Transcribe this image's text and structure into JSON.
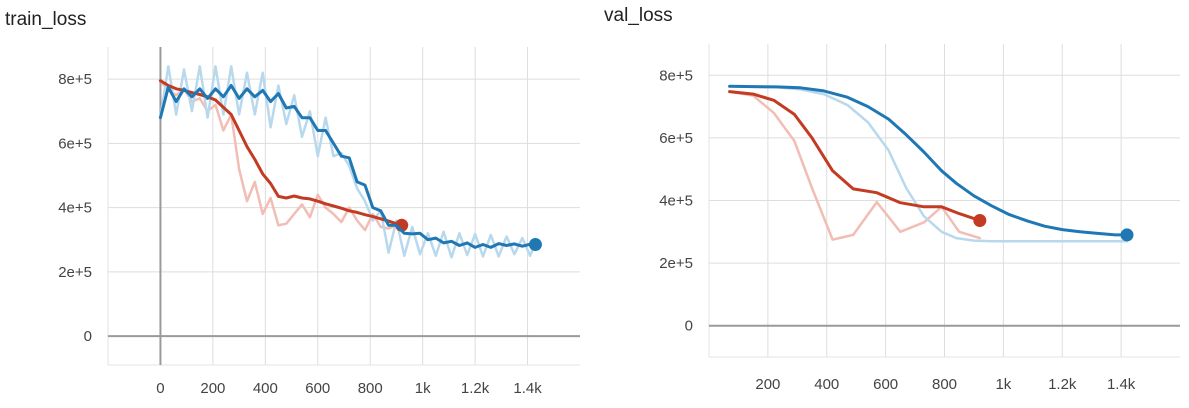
{
  "chart_data": [
    {
      "type": "line",
      "title": "train_loss",
      "xlim": [
        -200,
        1600
      ],
      "ylim": [
        -90000,
        900000
      ],
      "x_ticks": [
        0,
        200,
        400,
        600,
        800,
        1000,
        1200,
        1400
      ],
      "x_tick_labels": [
        "0",
        "200",
        "400",
        "600",
        "800",
        "1k",
        "1.2k",
        "1.4k"
      ],
      "y_ticks": [
        0,
        200000,
        400000,
        600000,
        800000
      ],
      "y_tick_labels": [
        "0",
        "2e+5",
        "4e+5",
        "6e+5",
        "8e+5"
      ],
      "grid": true,
      "series": [
        {
          "color": "#c23b22",
          "raw_color": "#f2bdb4",
          "x": [
            0,
            30,
            60,
            90,
            120,
            150,
            180,
            210,
            240,
            270,
            300,
            330,
            360,
            390,
            420,
            450,
            480,
            510,
            540,
            570,
            600,
            630,
            660,
            690,
            720,
            750,
            780,
            810,
            840,
            870,
            900,
            920
          ],
          "smoothed": [
            795000,
            780000,
            770000,
            765000,
            758000,
            752000,
            745000,
            735000,
            712000,
            690000,
            640000,
            590000,
            550000,
            505000,
            475000,
            435000,
            430000,
            436000,
            430000,
            427000,
            420000,
            412000,
            405000,
            398000,
            390000,
            385000,
            378000,
            372000,
            365000,
            358000,
            350000,
            345000
          ],
          "raw": [
            795000,
            765000,
            750000,
            770000,
            730000,
            740000,
            700000,
            720000,
            640000,
            690000,
            520000,
            420000,
            480000,
            380000,
            430000,
            345000,
            350000,
            380000,
            410000,
            370000,
            440000,
            400000,
            380000,
            355000,
            400000,
            360000,
            330000,
            380000,
            340000,
            335000,
            345000,
            345000
          ]
        },
        {
          "color": "#1f78b4",
          "raw_color": "#b8d9ed",
          "x": [
            0,
            30,
            60,
            90,
            120,
            150,
            180,
            210,
            240,
            270,
            300,
            330,
            360,
            390,
            420,
            450,
            480,
            510,
            540,
            570,
            600,
            630,
            660,
            690,
            720,
            750,
            780,
            810,
            840,
            870,
            900,
            930,
            960,
            990,
            1020,
            1050,
            1080,
            1110,
            1140,
            1170,
            1200,
            1230,
            1260,
            1290,
            1320,
            1350,
            1380,
            1410,
            1430
          ],
          "smoothed": [
            680000,
            775000,
            730000,
            770000,
            745000,
            770000,
            740000,
            770000,
            745000,
            780000,
            740000,
            770000,
            745000,
            765000,
            730000,
            755000,
            710000,
            715000,
            680000,
            680000,
            640000,
            640000,
            600000,
            560000,
            555000,
            480000,
            470000,
            400000,
            390000,
            345000,
            345000,
            320000,
            318000,
            320000,
            300000,
            305000,
            290000,
            295000,
            282000,
            290000,
            276000,
            285000,
            276000,
            288000,
            282000,
            287000,
            280000,
            286000,
            285000
          ],
          "raw": [
            680000,
            840000,
            690000,
            830000,
            700000,
            840000,
            680000,
            840000,
            690000,
            840000,
            690000,
            820000,
            690000,
            820000,
            650000,
            780000,
            660000,
            750000,
            620000,
            700000,
            560000,
            680000,
            560000,
            570000,
            530000,
            460000,
            420000,
            360000,
            390000,
            260000,
            360000,
            250000,
            340000,
            255000,
            320000,
            250000,
            325000,
            245000,
            320000,
            252000,
            318000,
            248000,
            315000,
            248000,
            310000,
            255000,
            305000,
            250000,
            290000
          ]
        }
      ]
    },
    {
      "type": "line",
      "title": "val_loss",
      "xlim": [
        0,
        1600
      ],
      "ylim": [
        -100000,
        900000
      ],
      "x_ticks": [
        200,
        400,
        600,
        800,
        1000,
        1200,
        1400
      ],
      "x_tick_labels": [
        "200",
        "400",
        "600",
        "800",
        "1k",
        "1.2k",
        "1.4k"
      ],
      "y_ticks": [
        0,
        200000,
        400000,
        600000,
        800000
      ],
      "y_tick_labels": [
        "0",
        "2e+5",
        "4e+5",
        "6e+5",
        "8e+5"
      ],
      "grid": true,
      "series": [
        {
          "color": "#c23b22",
          "raw_color": "#f2bdb4",
          "x": [
            70,
            150,
            220,
            290,
            350,
            420,
            490,
            570,
            650,
            730,
            790,
            850,
            920
          ],
          "smoothed": [
            748000,
            740000,
            720000,
            675000,
            600000,
            495000,
            437000,
            425000,
            393000,
            380000,
            380000,
            358000,
            336000
          ],
          "raw": [
            748000,
            735000,
            680000,
            590000,
            440000,
            275000,
            290000,
            395000,
            300000,
            330000,
            380000,
            300000,
            280000
          ]
        },
        {
          "color": "#1f78b4",
          "raw_color": "#b8d9ed",
          "x": [
            70,
            150,
            230,
            310,
            390,
            470,
            540,
            610,
            670,
            730,
            790,
            840,
            900,
            960,
            1020,
            1080,
            1140,
            1200,
            1260,
            1320,
            1380,
            1420
          ],
          "smoothed": [
            765000,
            764000,
            763000,
            760000,
            750000,
            730000,
            700000,
            660000,
            610000,
            555000,
            495000,
            455000,
            415000,
            383000,
            355000,
            335000,
            318000,
            307000,
            300000,
            295000,
            290000,
            290000
          ],
          "raw": [
            765000,
            763000,
            762000,
            755000,
            740000,
            705000,
            650000,
            560000,
            440000,
            350000,
            300000,
            280000,
            272000,
            270000,
            270000,
            270000,
            270000,
            270000,
            270000,
            270000,
            270000,
            270000
          ]
        }
      ]
    }
  ]
}
